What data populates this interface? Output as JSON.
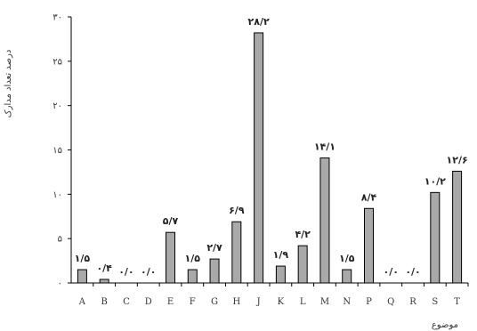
{
  "chart_data": {
    "type": "bar",
    "xlabel": "موضوع",
    "ylabel": "درصد تعداد مدارک",
    "ylim": [
      0,
      30
    ],
    "ytick_values": [
      0,
      5,
      10,
      15,
      20,
      25,
      30
    ],
    "ytick_labels": [
      "۰",
      "۵",
      "۱۰",
      "۱۵",
      "۲۰",
      "۲۵",
      "۳۰"
    ],
    "categories": [
      "A",
      "B",
      "C",
      "D",
      "E",
      "F",
      "G",
      "H",
      "J",
      "K",
      "L",
      "M",
      "N",
      "P",
      "Q",
      "R",
      "S",
      "T"
    ],
    "values": [
      1.5,
      0.4,
      0,
      0,
      5.7,
      1.5,
      2.7,
      6.9,
      28.2,
      1.9,
      4.2,
      14.1,
      1.5,
      8.4,
      0,
      0,
      10.2,
      12.6
    ],
    "data_labels": [
      "۱/۵",
      "۰/۴",
      "۰/۰",
      "۰/۰",
      "۵/۷",
      "۱/۵",
      "۲/۷",
      "۶/۹",
      "۲۸/۲",
      "۱/۹",
      "۴/۲",
      "۱۴/۱",
      "۱/۵",
      "۸/۴",
      "۰/۰",
      "۰/۰",
      "۱۰/۲",
      "۱۲/۶"
    ],
    "grid": false,
    "bar_fill": "#a9a9a9",
    "bar_stroke": "#000000"
  }
}
